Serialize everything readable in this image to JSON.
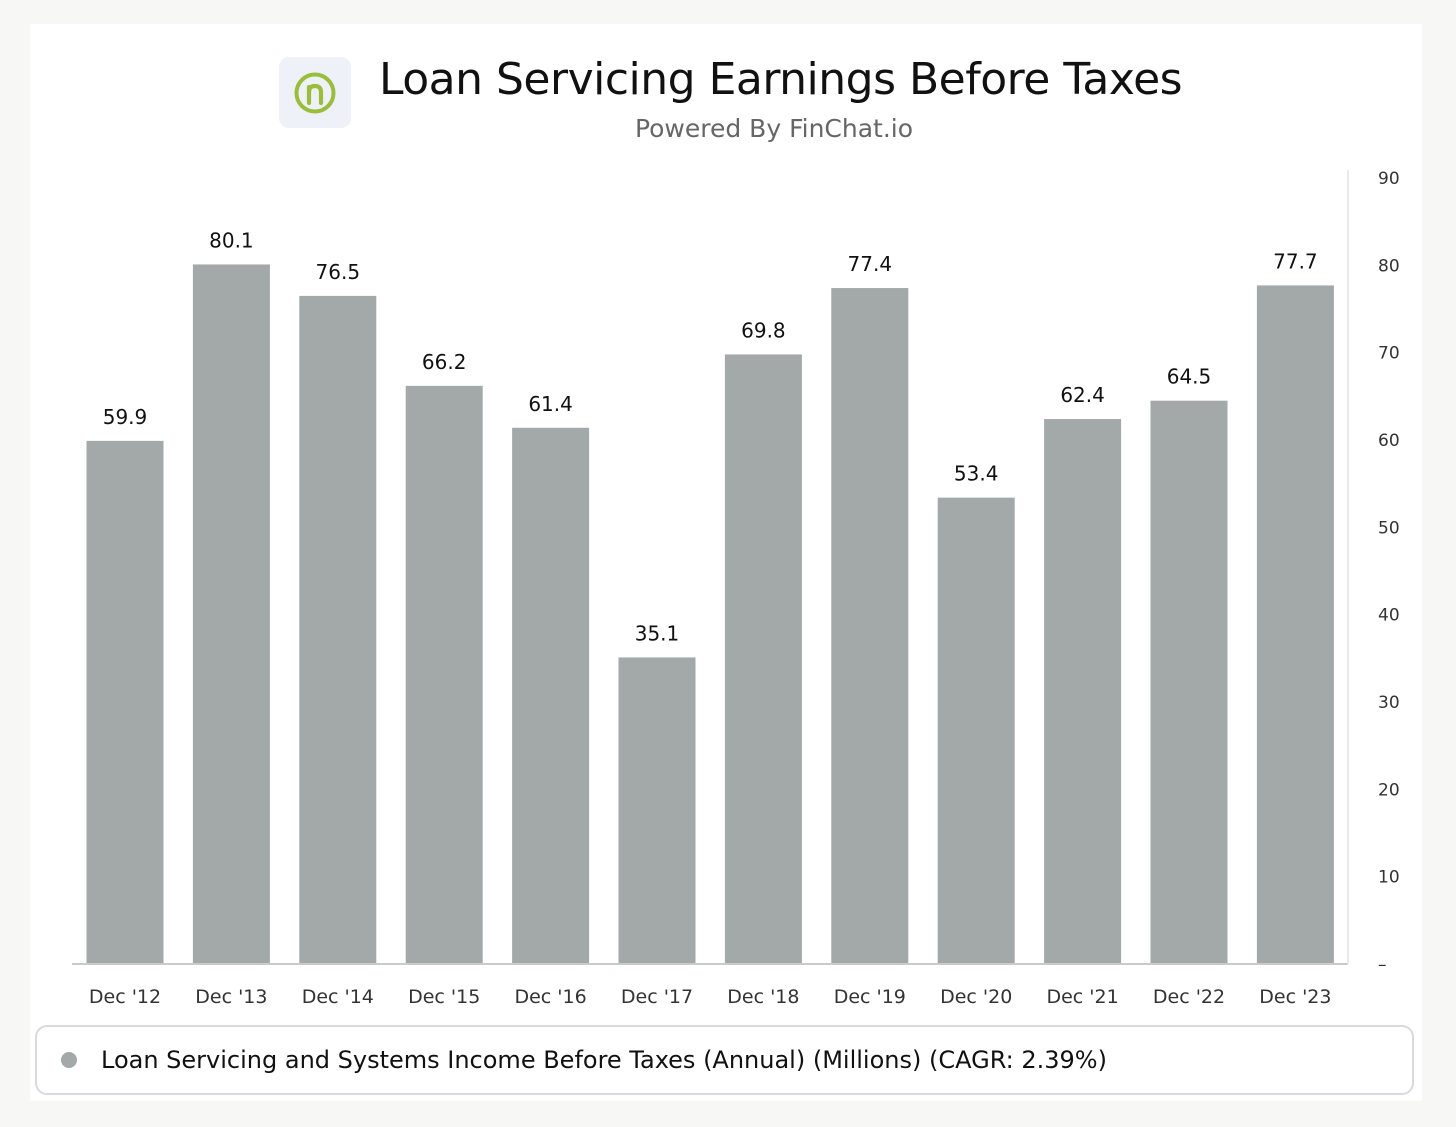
{
  "header": {
    "title": "Loan Servicing Earnings Before Taxes",
    "subtitle": "Powered By FinChat.io"
  },
  "logo": {
    "icon": "n-logo-icon",
    "color": "#9bbd3c"
  },
  "legend": {
    "label": "Loan Servicing and Systems Income Before Taxes (Annual) (Millions) (CAGR: 2.39%)"
  },
  "chart_data": {
    "type": "bar",
    "categories": [
      "Dec '12",
      "Dec '13",
      "Dec '14",
      "Dec '15",
      "Dec '16",
      "Dec '17",
      "Dec '18",
      "Dec '19",
      "Dec '20",
      "Dec '21",
      "Dec '22",
      "Dec '23"
    ],
    "series": [
      {
        "name": "Loan Servicing and Systems Income Before Taxes (Annual) (Millions) (CAGR: 2.39%)",
        "values": [
          59.9,
          80.1,
          76.5,
          66.2,
          61.4,
          35.1,
          69.8,
          77.4,
          53.4,
          62.4,
          64.5,
          77.7
        ],
        "data_labels": [
          "59.9",
          "80.1",
          "76.5",
          "66.2",
          "61.4",
          "35.1",
          "69.8",
          "77.4",
          "53.4",
          "62.4",
          "64.5",
          "77.7"
        ],
        "color": "#a3a9a9"
      }
    ],
    "ylim": [
      0,
      90
    ],
    "yticks": [
      0,
      10,
      20,
      30,
      40,
      50,
      60,
      70,
      80,
      90
    ],
    "ytick_labels": [
      "–",
      "10",
      "20",
      "30",
      "40",
      "50",
      "60",
      "70",
      "80",
      "90"
    ],
    "y_axis_side": "right",
    "grid": false,
    "legend_position": "bottom",
    "title": "Loan Servicing Earnings Before Taxes",
    "xlabel": "",
    "ylabel": ""
  }
}
